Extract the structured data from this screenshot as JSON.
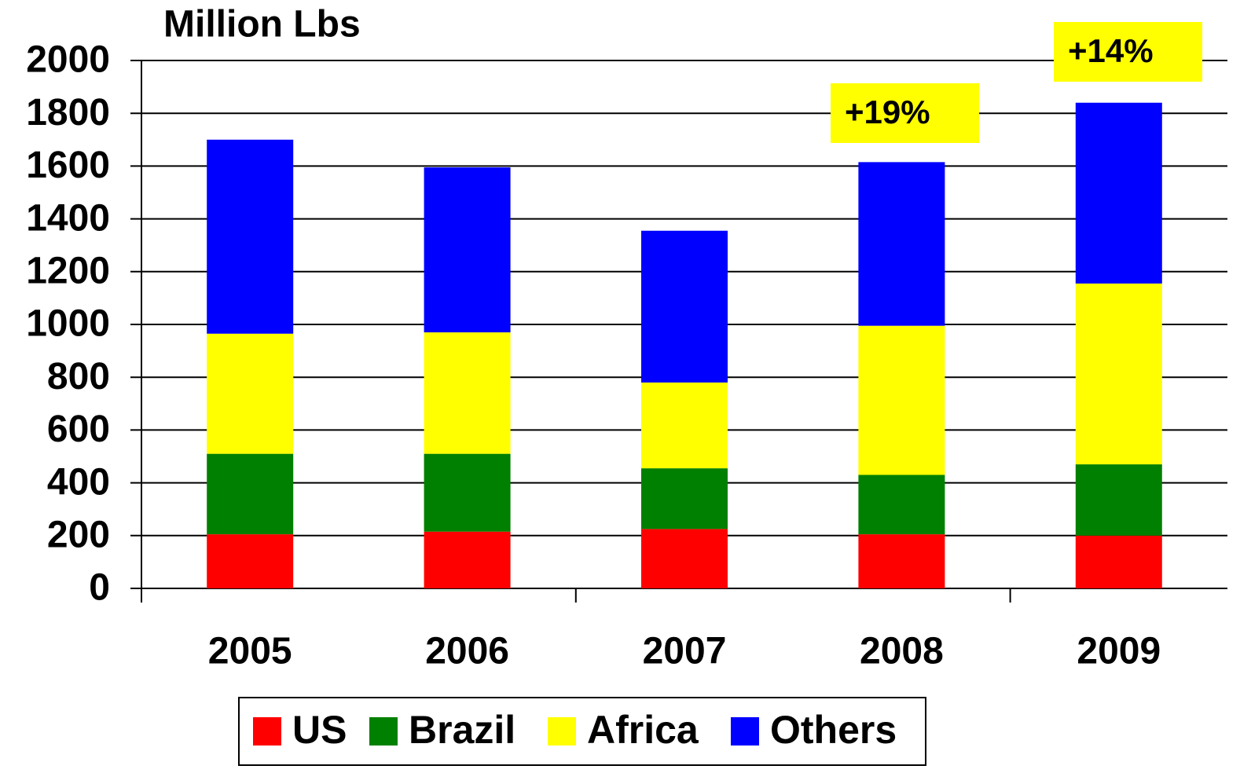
{
  "chart_data": {
    "type": "stacked_bar",
    "title": "Million Lbs",
    "categories": [
      "2005",
      "2006",
      "2007",
      "2008",
      "2009"
    ],
    "series": [
      {
        "name": "US",
        "color": "#ff0000",
        "values": [
          205,
          215,
          225,
          205,
          200
        ]
      },
      {
        "name": "Brazil",
        "color": "#008000",
        "values": [
          305,
          295,
          230,
          225,
          270
        ]
      },
      {
        "name": "Africa",
        "color": "#ffff00",
        "values": [
          455,
          460,
          325,
          565,
          685
        ]
      },
      {
        "name": "Others",
        "color": "#0000ff",
        "values": [
          735,
          625,
          575,
          620,
          685
        ]
      }
    ],
    "annotations": [
      "+19%",
      "+14%"
    ],
    "ylim": [
      0,
      2000
    ],
    "yticks": [
      0,
      200,
      400,
      600,
      800,
      1000,
      1200,
      1400,
      1600,
      1800,
      2000
    ],
    "grid": true,
    "legend": "bottom"
  }
}
